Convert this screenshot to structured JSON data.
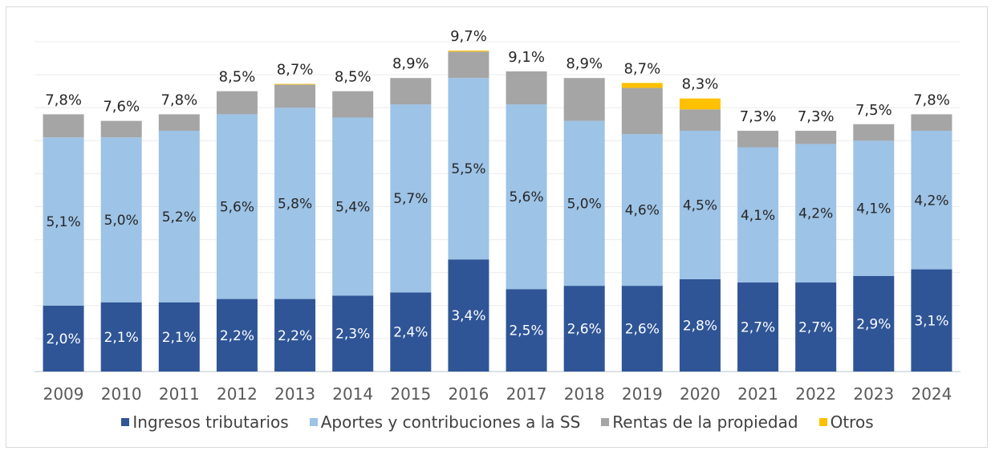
{
  "chart_data": {
    "type": "bar",
    "stacked": true,
    "title": "",
    "xlabel": "",
    "ylabel": "",
    "ylim": [
      0,
      10
    ],
    "grid": true,
    "legend_position": "bottom",
    "categories": [
      "2009",
      "2010",
      "2011",
      "2012",
      "2013",
      "2014",
      "2015",
      "2016",
      "2017",
      "2018",
      "2019",
      "2020",
      "2021",
      "2022",
      "2023",
      "2024"
    ],
    "series": [
      {
        "name": "Ingresos tributarios",
        "color": "#2F5597",
        "values": [
          2.0,
          2.1,
          2.1,
          2.2,
          2.2,
          2.3,
          2.4,
          3.4,
          2.5,
          2.6,
          2.6,
          2.8,
          2.7,
          2.7,
          2.9,
          3.1
        ],
        "labels": [
          "2,0%",
          "2,1%",
          "2,1%",
          "2,2%",
          "2,2%",
          "2,3%",
          "2,4%",
          "3,4%",
          "2,5%",
          "2,6%",
          "2,6%",
          "2,8%",
          "2,7%",
          "2,7%",
          "2,9%",
          "3,1%"
        ]
      },
      {
        "name": "Aportes y contribuciones a la SS",
        "color": "#9DC3E6",
        "values": [
          5.1,
          5.0,
          5.2,
          5.6,
          5.8,
          5.4,
          5.7,
          5.5,
          5.6,
          5.0,
          4.6,
          4.5,
          4.1,
          4.2,
          4.1,
          4.2
        ],
        "labels": [
          "5,1%",
          "5,0%",
          "5,2%",
          "5,6%",
          "5,8%",
          "5,4%",
          "5,7%",
          "5,5%",
          "5,6%",
          "5,0%",
          "4,6%",
          "4,5%",
          "4,1%",
          "4,2%",
          "4,1%",
          "4,2%"
        ]
      },
      {
        "name": "Rentas de la propiedad",
        "color": "#A5A5A5",
        "values": [
          0.7,
          0.5,
          0.5,
          0.7,
          0.7,
          0.8,
          0.8,
          0.8,
          1.0,
          1.3,
          1.4,
          0.65,
          0.5,
          0.4,
          0.5,
          0.5
        ]
      },
      {
        "name": "Otros",
        "color": "#FFC000",
        "values": [
          0.0,
          0.0,
          0.0,
          0.0,
          0.02,
          0.0,
          0.0,
          0.03,
          0.0,
          0.0,
          0.15,
          0.33,
          0.0,
          0.0,
          0.0,
          0.0
        ]
      }
    ],
    "totals": [
      7.8,
      7.6,
      7.8,
      8.5,
      8.7,
      8.5,
      8.9,
      9.7,
      9.1,
      8.9,
      8.7,
      8.3,
      7.3,
      7.3,
      7.5,
      7.8
    ],
    "total_labels": [
      "7,8%",
      "7,6%",
      "7,8%",
      "8,5%",
      "8,7%",
      "8,5%",
      "8,9%",
      "9,7%",
      "9,1%",
      "8,9%",
      "8,7%",
      "8,3%",
      "7,3%",
      "7,3%",
      "7,5%",
      "7,8%"
    ]
  },
  "legend": [
    {
      "label": "Ingresos tributarios",
      "color": "#2F5597"
    },
    {
      "label": "Aportes y contribuciones a la SS",
      "color": "#9DC3E6"
    },
    {
      "label": "Rentas de la propiedad",
      "color": "#A5A5A5"
    },
    {
      "label": "Otros",
      "color": "#FFC000"
    }
  ]
}
